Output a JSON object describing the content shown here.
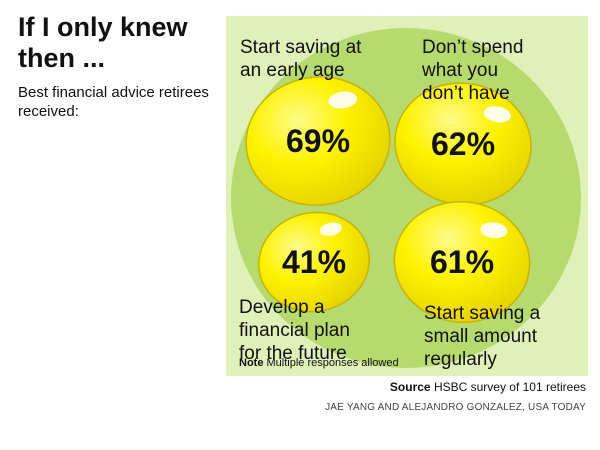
{
  "chart_data": {
    "type": "bubble",
    "title": "If I only knew then ...",
    "subtitle": "Best financial advice retirees received:",
    "categories": [
      "Start saving at an early age",
      "Don’t spend what you don’t have",
      "Develop a financial plan for the future",
      "Start saving a small amount regularly"
    ],
    "values": [
      69,
      62,
      41,
      61
    ],
    "value_labels": [
      "69%",
      "62%",
      "41%",
      "61%"
    ],
    "label_lines": [
      [
        "Start saving at",
        "an early age"
      ],
      [
        "Don’t spend",
        "what you",
        "don’t have"
      ],
      [
        "Develop a",
        "financial plan",
        "for the future"
      ],
      [
        "Start saving a",
        "small amount",
        "regularly"
      ]
    ],
    "unit": "%",
    "note_label": "Note",
    "note_text": "Multiple responses allowed",
    "source_label": "Source",
    "source_text": "HSBC survey of 101 retirees",
    "credit": "JAE YANG AND ALEJANDRO GONZALEZ, USA TODAY"
  },
  "colors": {
    "panel": "#dff0b8",
    "circle": "#b7da6f",
    "egg_fill": "#fff200",
    "egg_shade": "#e3d000",
    "egg_outline": "#c7b400",
    "text": "#111111"
  }
}
